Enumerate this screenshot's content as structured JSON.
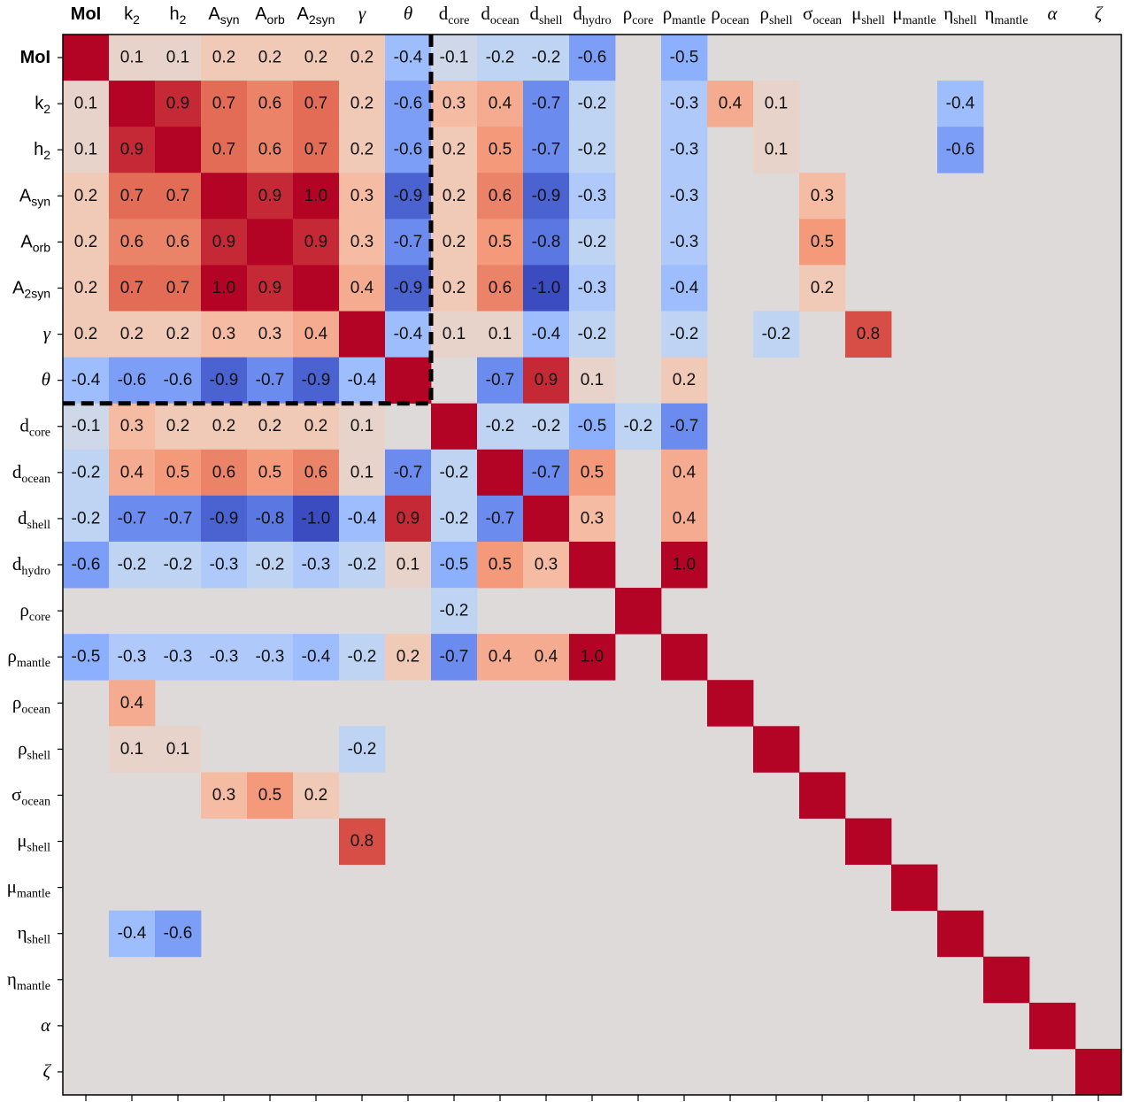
{
  "chart_data": {
    "type": "heatmap",
    "title": "",
    "xlabel": "",
    "ylabel": "",
    "value_range": [
      -1,
      1
    ],
    "colormap": "coolwarm",
    "blank_cell_color": "#dddad9",
    "highlight_box": {
      "rows": [
        "MoI",
        "k2",
        "h2",
        "Asyn",
        "Aorb",
        "A2syn",
        "gamma",
        "theta"
      ],
      "cols": [
        "MoI",
        "k2",
        "h2",
        "Asyn",
        "Aorb",
        "A2syn",
        "gamma",
        "theta"
      ],
      "style": "dashed-black"
    },
    "labels": [
      {
        "id": "MoI",
        "base": "MoI",
        "sub": "",
        "style": "sans-bold"
      },
      {
        "id": "k2",
        "base": "k",
        "sub": "2",
        "style": "sans"
      },
      {
        "id": "h2",
        "base": "h",
        "sub": "2",
        "style": "sans"
      },
      {
        "id": "Asyn",
        "base": "A",
        "sub": "syn",
        "style": "sans"
      },
      {
        "id": "Aorb",
        "base": "A",
        "sub": "orb",
        "style": "sans"
      },
      {
        "id": "A2syn",
        "base": "A",
        "sub": "2syn",
        "style": "sans"
      },
      {
        "id": "gamma",
        "base": "γ",
        "sub": "",
        "style": "serif-italic"
      },
      {
        "id": "theta",
        "base": "θ",
        "sub": "",
        "style": "serif-italic"
      },
      {
        "id": "dcore",
        "base": "d",
        "sub": "core",
        "style": "serif"
      },
      {
        "id": "docean",
        "base": "d",
        "sub": "ocean",
        "style": "serif"
      },
      {
        "id": "dshell",
        "base": "d",
        "sub": "shell",
        "style": "serif"
      },
      {
        "id": "dhydro",
        "base": "d",
        "sub": "hydro",
        "style": "serif"
      },
      {
        "id": "rhocore",
        "base": "ρ",
        "sub": "core",
        "style": "serif"
      },
      {
        "id": "rhomantle",
        "base": "ρ",
        "sub": "mantle",
        "style": "serif"
      },
      {
        "id": "rhoocean",
        "base": "ρ",
        "sub": "ocean",
        "style": "serif"
      },
      {
        "id": "rhoshell",
        "base": "ρ",
        "sub": "shell",
        "style": "serif"
      },
      {
        "id": "sigmaocean",
        "base": "σ",
        "sub": "ocean",
        "style": "serif"
      },
      {
        "id": "mushell",
        "base": "μ",
        "sub": "shell",
        "style": "serif"
      },
      {
        "id": "mumantle",
        "base": "μ",
        "sub": "mantle",
        "style": "serif"
      },
      {
        "id": "etashell",
        "base": "η",
        "sub": "shell",
        "style": "serif"
      },
      {
        "id": "etamantle",
        "base": "η",
        "sub": "mantle",
        "style": "serif"
      },
      {
        "id": "alpha",
        "base": "α",
        "sub": "",
        "style": "serif-italic"
      },
      {
        "id": "zeta",
        "base": "ζ",
        "sub": "",
        "style": "serif-italic"
      }
    ],
    "matrix": [
      [
        1.0,
        0.1,
        0.1,
        0.2,
        0.2,
        0.2,
        0.2,
        -0.4,
        -0.1,
        -0.2,
        -0.2,
        -0.6,
        null,
        -0.5,
        null,
        null,
        null,
        null,
        null,
        null,
        null,
        null,
        null
      ],
      [
        0.1,
        1.0,
        0.9,
        0.7,
        0.6,
        0.7,
        0.2,
        -0.6,
        0.3,
        0.4,
        -0.7,
        -0.2,
        null,
        -0.3,
        0.4,
        0.1,
        null,
        null,
        null,
        -0.4,
        null,
        null,
        null
      ],
      [
        0.1,
        0.9,
        1.0,
        0.7,
        0.6,
        0.7,
        0.2,
        -0.6,
        0.2,
        0.5,
        -0.7,
        -0.2,
        null,
        -0.3,
        null,
        0.1,
        null,
        null,
        null,
        -0.6,
        null,
        null,
        null
      ],
      [
        0.2,
        0.7,
        0.7,
        1.0,
        0.9,
        1.0,
        0.3,
        -0.9,
        0.2,
        0.6,
        -0.9,
        -0.3,
        null,
        -0.3,
        null,
        null,
        0.3,
        null,
        null,
        null,
        null,
        null,
        null
      ],
      [
        0.2,
        0.6,
        0.6,
        0.9,
        1.0,
        0.9,
        0.3,
        -0.7,
        0.2,
        0.5,
        -0.8,
        -0.2,
        null,
        -0.3,
        null,
        null,
        0.5,
        null,
        null,
        null,
        null,
        null,
        null
      ],
      [
        0.2,
        0.7,
        0.7,
        1.0,
        0.9,
        1.0,
        0.4,
        -0.9,
        0.2,
        0.6,
        -1.0,
        -0.3,
        null,
        -0.4,
        null,
        null,
        0.2,
        null,
        null,
        null,
        null,
        null,
        null
      ],
      [
        0.2,
        0.2,
        0.2,
        0.3,
        0.3,
        0.4,
        1.0,
        -0.4,
        0.1,
        0.1,
        -0.4,
        -0.2,
        null,
        -0.2,
        null,
        -0.2,
        null,
        0.8,
        null,
        null,
        null,
        null,
        null
      ],
      [
        -0.4,
        -0.6,
        -0.6,
        -0.9,
        -0.7,
        -0.9,
        -0.4,
        1.0,
        null,
        -0.7,
        0.9,
        0.1,
        null,
        0.2,
        null,
        null,
        null,
        null,
        null,
        null,
        null,
        null,
        null
      ],
      [
        -0.1,
        0.3,
        0.2,
        0.2,
        0.2,
        0.2,
        0.1,
        null,
        1.0,
        -0.2,
        -0.2,
        -0.5,
        -0.2,
        -0.7,
        null,
        null,
        null,
        null,
        null,
        null,
        null,
        null,
        null
      ],
      [
        -0.2,
        0.4,
        0.5,
        0.6,
        0.5,
        0.6,
        0.1,
        -0.7,
        -0.2,
        1.0,
        -0.7,
        0.5,
        null,
        0.4,
        null,
        null,
        null,
        null,
        null,
        null,
        null,
        null,
        null
      ],
      [
        -0.2,
        -0.7,
        -0.7,
        -0.9,
        -0.8,
        -1.0,
        -0.4,
        0.9,
        -0.2,
        -0.7,
        1.0,
        0.3,
        null,
        0.4,
        null,
        null,
        null,
        null,
        null,
        null,
        null,
        null,
        null
      ],
      [
        -0.6,
        -0.2,
        -0.2,
        -0.3,
        -0.2,
        -0.3,
        -0.2,
        0.1,
        -0.5,
        0.5,
        0.3,
        1.0,
        null,
        1.0,
        null,
        null,
        null,
        null,
        null,
        null,
        null,
        null,
        null
      ],
      [
        null,
        null,
        null,
        null,
        null,
        null,
        null,
        null,
        -0.2,
        null,
        null,
        null,
        1.0,
        null,
        null,
        null,
        null,
        null,
        null,
        null,
        null,
        null,
        null
      ],
      [
        -0.5,
        -0.3,
        -0.3,
        -0.3,
        -0.3,
        -0.4,
        -0.2,
        0.2,
        -0.7,
        0.4,
        0.4,
        1.0,
        null,
        1.0,
        null,
        null,
        null,
        null,
        null,
        null,
        null,
        null,
        null
      ],
      [
        null,
        0.4,
        null,
        null,
        null,
        null,
        null,
        null,
        null,
        null,
        null,
        null,
        null,
        null,
        1.0,
        null,
        null,
        null,
        null,
        null,
        null,
        null,
        null
      ],
      [
        null,
        0.1,
        0.1,
        null,
        null,
        null,
        -0.2,
        null,
        null,
        null,
        null,
        null,
        null,
        null,
        null,
        1.0,
        null,
        null,
        null,
        null,
        null,
        null,
        null
      ],
      [
        null,
        null,
        null,
        0.3,
        0.5,
        0.2,
        null,
        null,
        null,
        null,
        null,
        null,
        null,
        null,
        null,
        null,
        1.0,
        null,
        null,
        null,
        null,
        null,
        null
      ],
      [
        null,
        null,
        null,
        null,
        null,
        null,
        0.8,
        null,
        null,
        null,
        null,
        null,
        null,
        null,
        null,
        null,
        null,
        1.0,
        null,
        null,
        null,
        null,
        null
      ],
      [
        null,
        null,
        null,
        null,
        null,
        null,
        null,
        null,
        null,
        null,
        null,
        null,
        null,
        null,
        null,
        null,
        null,
        null,
        1.0,
        null,
        null,
        null,
        null
      ],
      [
        null,
        -0.4,
        -0.6,
        null,
        null,
        null,
        null,
        null,
        null,
        null,
        null,
        null,
        null,
        null,
        null,
        null,
        null,
        null,
        null,
        1.0,
        null,
        null,
        null
      ],
      [
        null,
        null,
        null,
        null,
        null,
        null,
        null,
        null,
        null,
        null,
        null,
        null,
        null,
        null,
        null,
        null,
        null,
        null,
        null,
        null,
        1.0,
        null,
        null
      ],
      [
        null,
        null,
        null,
        null,
        null,
        null,
        null,
        null,
        null,
        null,
        null,
        null,
        null,
        null,
        null,
        null,
        null,
        null,
        null,
        null,
        null,
        1.0,
        null
      ],
      [
        null,
        null,
        null,
        null,
        null,
        null,
        null,
        null,
        null,
        null,
        null,
        null,
        null,
        null,
        null,
        null,
        null,
        null,
        null,
        null,
        null,
        null,
        1.0
      ]
    ]
  }
}
